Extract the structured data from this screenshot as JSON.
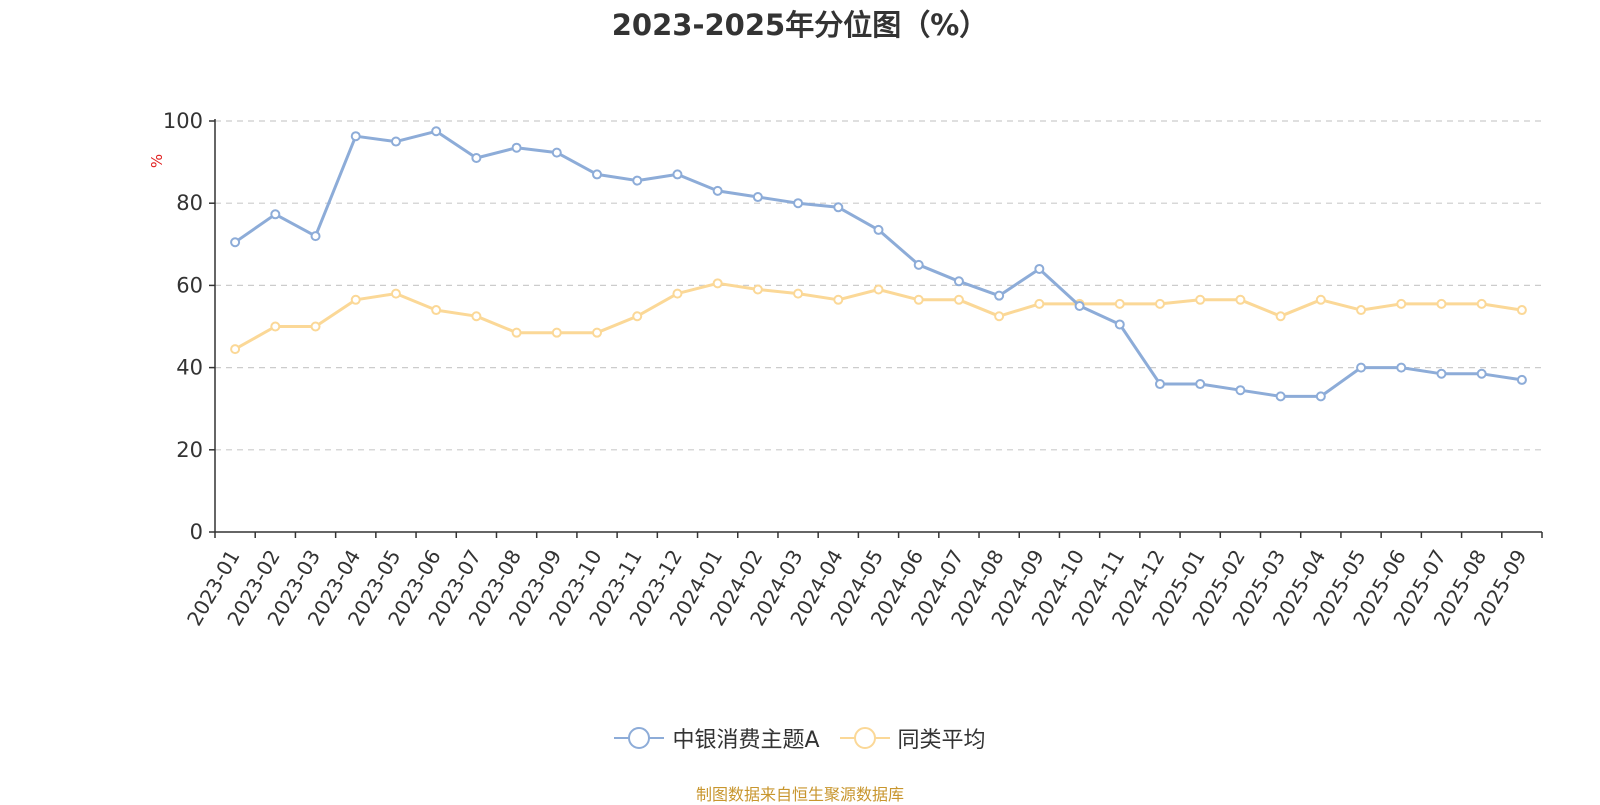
{
  "chart_data": {
    "type": "line",
    "title": "2023-2025年分位图（%）",
    "ylabel": "%",
    "xlabel": "",
    "ylim": [
      0,
      100
    ],
    "yticks": [
      0,
      20,
      40,
      60,
      80,
      100
    ],
    "grid": true,
    "legend_position": "bottom",
    "categories": [
      "2023-01",
      "2023-02",
      "2023-03",
      "2023-04",
      "2023-05",
      "2023-06",
      "2023-07",
      "2023-08",
      "2023-09",
      "2023-10",
      "2023-11",
      "2023-12",
      "2024-01",
      "2024-02",
      "2024-03",
      "2024-04",
      "2024-05",
      "2024-06",
      "2024-07",
      "2024-08",
      "2024-09",
      "2024-10",
      "2024-11",
      "2024-12",
      "2025-01",
      "2025-02",
      "2025-03",
      "2025-04",
      "2025-05",
      "2025-06",
      "2025-07",
      "2025-08",
      "2025-09"
    ],
    "series": [
      {
        "name": "中银消费主题A",
        "color": "#8dacd8",
        "values": [
          70.5,
          77.3,
          72.0,
          96.3,
          95.0,
          97.5,
          91.0,
          93.5,
          92.3,
          87.0,
          85.5,
          87.0,
          83.0,
          81.5,
          80.0,
          79.0,
          73.5,
          65.0,
          61.0,
          57.5,
          64.0,
          55.0,
          50.5,
          36.0,
          36.0,
          34.5,
          33.0,
          33.0,
          40.0,
          40.0,
          38.5,
          38.5,
          37.0
        ]
      },
      {
        "name": "同类平均",
        "color": "#fbd897",
        "values": [
          44.5,
          50.0,
          50.0,
          56.5,
          58.0,
          54.0,
          52.5,
          48.5,
          48.5,
          48.5,
          52.5,
          58.0,
          60.5,
          59.0,
          58.0,
          56.5,
          59.0,
          56.5,
          56.5,
          52.5,
          55.5,
          55.5,
          55.5,
          55.5,
          56.5,
          56.5,
          52.5,
          56.5,
          54.0,
          55.5,
          55.5,
          55.5,
          54.0
        ]
      }
    ]
  },
  "footer": {
    "source": "制图数据来自恒生聚源数据库"
  }
}
